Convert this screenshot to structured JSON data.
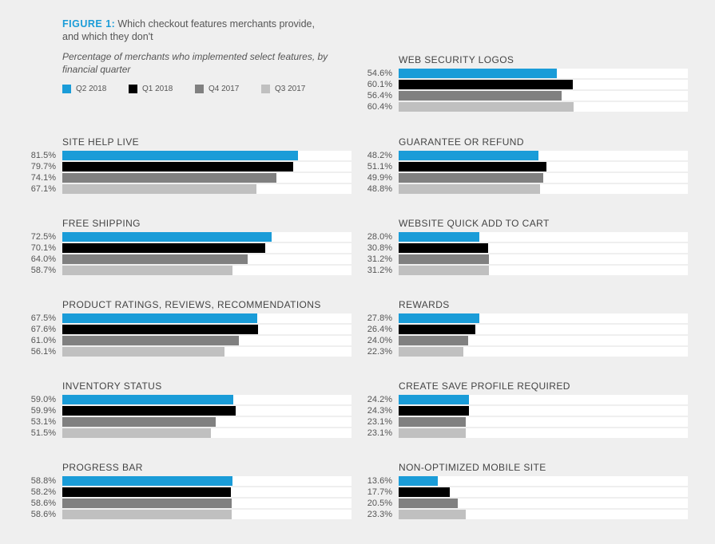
{
  "header": {
    "figure_label": "FIGURE 1:",
    "title": "Which checkout features merchants provide, and which they don't",
    "subtitle": "Percentage of merchants who implemented select features, by financial quarter"
  },
  "colors": {
    "Q2 2018": "#1a9cd8",
    "Q1 2018": "#000000",
    "Q4 2017": "#808080",
    "Q3 2017": "#c0c0c0"
  },
  "legend": [
    {
      "label": "Q2 2018",
      "color": "#1a9cd8"
    },
    {
      "label": "Q1 2018",
      "color": "#000000"
    },
    {
      "label": "Q4 2017",
      "color": "#808080"
    },
    {
      "label": "Q3 2017",
      "color": "#c0c0c0"
    }
  ],
  "chart_data": [
    {
      "type": "bar",
      "orientation": "horizontal",
      "title": "WEB SECURITY LOGOS",
      "xlim": [
        0,
        100
      ],
      "categories": [
        "Q2 2018",
        "Q1 2018",
        "Q4 2017",
        "Q3 2017"
      ],
      "values": [
        54.6,
        60.1,
        56.4,
        60.4
      ],
      "labels": [
        "54.6%",
        "60.1%",
        "56.4%",
        "60.4%"
      ]
    },
    {
      "type": "bar",
      "orientation": "horizontal",
      "title": "SITE HELP LIVE",
      "xlim": [
        0,
        100
      ],
      "categories": [
        "Q2 2018",
        "Q1 2018",
        "Q4 2017",
        "Q3 2017"
      ],
      "values": [
        81.5,
        79.7,
        74.1,
        67.1
      ],
      "labels": [
        "81.5%",
        "79.7%",
        "74.1%",
        "67.1%"
      ]
    },
    {
      "type": "bar",
      "orientation": "horizontal",
      "title": "GUARANTEE OR REFUND",
      "xlim": [
        0,
        100
      ],
      "categories": [
        "Q2 2018",
        "Q1 2018",
        "Q4 2017",
        "Q3 2017"
      ],
      "values": [
        48.2,
        51.1,
        49.9,
        48.8
      ],
      "labels": [
        "48.2%",
        "51.1%",
        "49.9%",
        "48.8%"
      ]
    },
    {
      "type": "bar",
      "orientation": "horizontal",
      "title": "FREE SHIPPING",
      "xlim": [
        0,
        100
      ],
      "categories": [
        "Q2 2018",
        "Q1 2018",
        "Q4 2017",
        "Q3 2017"
      ],
      "values": [
        72.5,
        70.1,
        64.0,
        58.7
      ],
      "labels": [
        "72.5%",
        "70.1%",
        "64.0%",
        "58.7%"
      ]
    },
    {
      "type": "bar",
      "orientation": "horizontal",
      "title": "WEBSITE QUICK ADD TO CART",
      "xlim": [
        0,
        100
      ],
      "categories": [
        "Q2 2018",
        "Q1 2018",
        "Q4 2017",
        "Q3 2017"
      ],
      "values": [
        28.0,
        30.8,
        31.2,
        31.2
      ],
      "labels": [
        "28.0%",
        "30.8%",
        "31.2%",
        "31.2%"
      ]
    },
    {
      "type": "bar",
      "orientation": "horizontal",
      "title": "PRODUCT RATINGS, REVIEWS, RECOMMENDATIONS",
      "xlim": [
        0,
        100
      ],
      "categories": [
        "Q2 2018",
        "Q1 2018",
        "Q4 2017",
        "Q3 2017"
      ],
      "values": [
        67.5,
        67.6,
        61.0,
        56.1
      ],
      "labels": [
        "67.5%",
        "67.6%",
        "61.0%",
        "56.1%"
      ]
    },
    {
      "type": "bar",
      "orientation": "horizontal",
      "title": "REWARDS",
      "xlim": [
        0,
        100
      ],
      "categories": [
        "Q2 2018",
        "Q1 2018",
        "Q4 2017",
        "Q3 2017"
      ],
      "values": [
        27.8,
        26.4,
        24.0,
        22.3
      ],
      "labels": [
        "27.8%",
        "26.4%",
        "24.0%",
        "22.3%"
      ]
    },
    {
      "type": "bar",
      "orientation": "horizontal",
      "title": "INVENTORY STATUS",
      "xlim": [
        0,
        100
      ],
      "categories": [
        "Q2 2018",
        "Q1 2018",
        "Q4 2017",
        "Q3 2017"
      ],
      "values": [
        59.0,
        59.9,
        53.1,
        51.5
      ],
      "labels": [
        "59.0%",
        "59.9%",
        "53.1%",
        "51.5%"
      ]
    },
    {
      "type": "bar",
      "orientation": "horizontal",
      "title": "CREATE SAVE PROFILE REQUIRED",
      "xlim": [
        0,
        100
      ],
      "categories": [
        "Q2 2018",
        "Q1 2018",
        "Q4 2017",
        "Q3 2017"
      ],
      "values": [
        24.2,
        24.3,
        23.1,
        23.1
      ],
      "labels": [
        "24.2%",
        "24.3%",
        "23.1%",
        "23.1%"
      ]
    },
    {
      "type": "bar",
      "orientation": "horizontal",
      "title": "PROGRESS BAR",
      "xlim": [
        0,
        100
      ],
      "categories": [
        "Q2 2018",
        "Q1 2018",
        "Q4 2017",
        "Q3 2017"
      ],
      "values": [
        58.8,
        58.2,
        58.6,
        58.6
      ],
      "labels": [
        "58.8%",
        "58.2%",
        "58.6%",
        "58.6%"
      ]
    },
    {
      "type": "bar",
      "orientation": "horizontal",
      "title": "NON-OPTIMIZED MOBILE SITE",
      "xlim": [
        0,
        100
      ],
      "categories": [
        "Q2 2018",
        "Q1 2018",
        "Q4 2017",
        "Q3 2017"
      ],
      "values": [
        13.6,
        17.7,
        20.5,
        23.3
      ],
      "labels": [
        "13.6%",
        "17.7%",
        "20.5%",
        "23.3%"
      ]
    }
  ]
}
